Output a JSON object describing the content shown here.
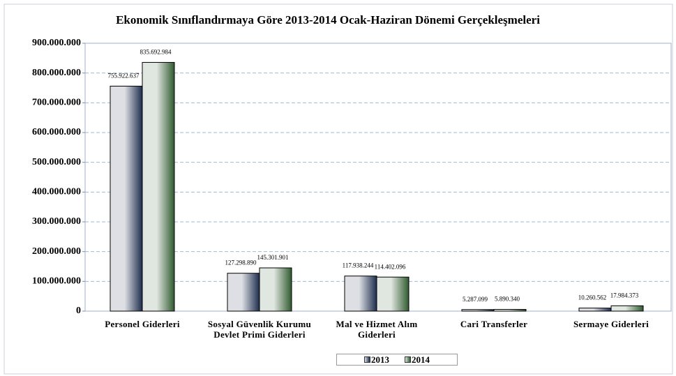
{
  "chart_data": {
    "type": "bar",
    "title": "Ekonomik Sınıflandırmaya Göre 2013-2014 Ocak-Haziran Dönemi Gerçekleşmeleri",
    "categories": [
      "Personel Giderleri",
      "Sosyal Güvenlik Kurumu Devlet Primi Giderleri",
      "Mal ve Hizmet Alım Giderleri",
      "Cari Transferler",
      "Sermaye Giderleri"
    ],
    "series": [
      {
        "name": "2013",
        "color": "#1c2c4c",
        "values": [
          755922637,
          127298890,
          117938244,
          5287099,
          10260562
        ],
        "value_labels": [
          "755.922.637",
          "127.298.890",
          "117.938.244",
          "5.287.099",
          "10.260.562"
        ]
      },
      {
        "name": "2014",
        "color": "#2f5a2f",
        "values": [
          835692984,
          145301901,
          114402096,
          5890340,
          17984373
        ],
        "value_labels": [
          "835.692.984",
          "145.301.901",
          "114.402.096",
          "5.890.340",
          "17.984.373"
        ]
      }
    ],
    "ylim": [
      0,
      900000000
    ],
    "yticks": [
      0,
      {
        "value": 100000000,
        "label": "100.000.000"
      },
      {
        "value": 200000000,
        "label": "200.000.000"
      },
      {
        "value": 300000000,
        "label": "300.000.000"
      },
      {
        "value": 400000000,
        "label": "400.000.000"
      },
      {
        "value": 500000000,
        "label": "500.000.000"
      },
      {
        "value": 600000000,
        "label": "600.000.000"
      },
      {
        "value": 700000000,
        "label": "700.000.000"
      },
      {
        "value": 800000000,
        "label": "800.000.000"
      },
      {
        "value": 900000000,
        "label": "900.000.000"
      }
    ],
    "grid": true,
    "legend": "bottom"
  }
}
